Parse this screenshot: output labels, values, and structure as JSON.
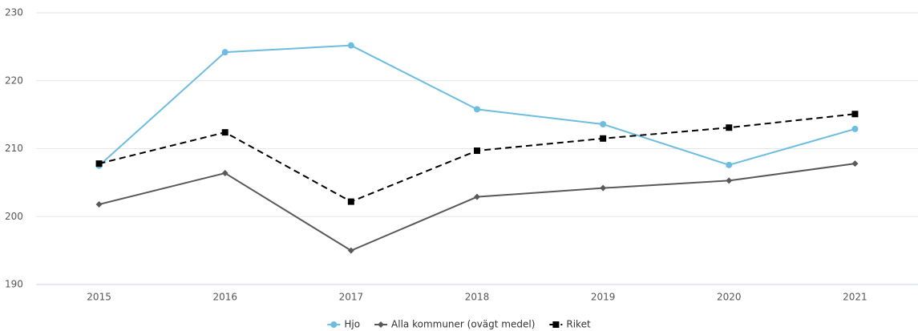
{
  "chart_data": {
    "type": "line",
    "categories": [
      "2015",
      "2016",
      "2017",
      "2018",
      "2019",
      "2020",
      "2021"
    ],
    "series": [
      {
        "name": "Hjo",
        "color": "#6cbde0",
        "marker": "circle",
        "dashed": false,
        "values": [
          207.5,
          224.2,
          225.2,
          215.8,
          213.6,
          207.6,
          212.9
        ]
      },
      {
        "name": "Alla kommuner (ovägt medel)",
        "color": "#595959",
        "marker": "diamond",
        "dashed": false,
        "values": [
          201.8,
          206.4,
          195.0,
          202.9,
          204.2,
          205.3,
          207.8
        ]
      },
      {
        "name": "Riket",
        "color": "#000000",
        "marker": "square",
        "dashed": true,
        "values": [
          207.8,
          212.4,
          202.2,
          209.7,
          211.5,
          213.1,
          215.1
        ]
      }
    ],
    "ylim": [
      190,
      230
    ],
    "yticks": [
      190,
      200,
      210,
      220,
      230
    ],
    "grid": true,
    "legend": "bottom"
  }
}
